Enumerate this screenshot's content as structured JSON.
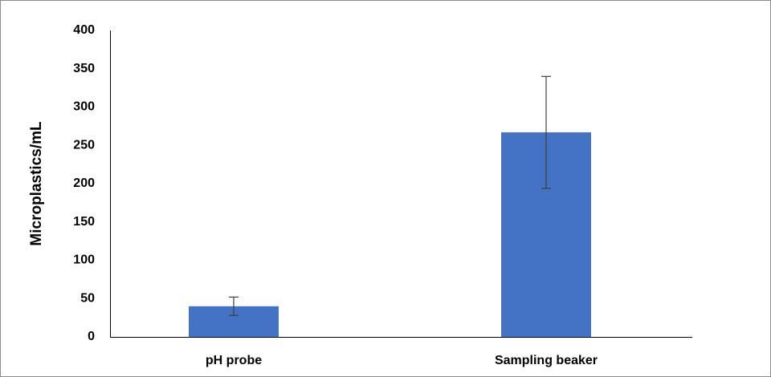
{
  "chart_data": {
    "type": "bar",
    "y_label": "Microplastics/mL",
    "categories": [
      "pH probe",
      "Sampling beaker"
    ],
    "values": [
      40,
      267
    ],
    "errors": [
      12,
      73
    ],
    "color": "#4472c4",
    "ylim": [
      0,
      400
    ],
    "yticks": [
      0,
      50,
      100,
      150,
      200,
      250,
      300,
      350,
      400
    ],
    "grid": false
  }
}
